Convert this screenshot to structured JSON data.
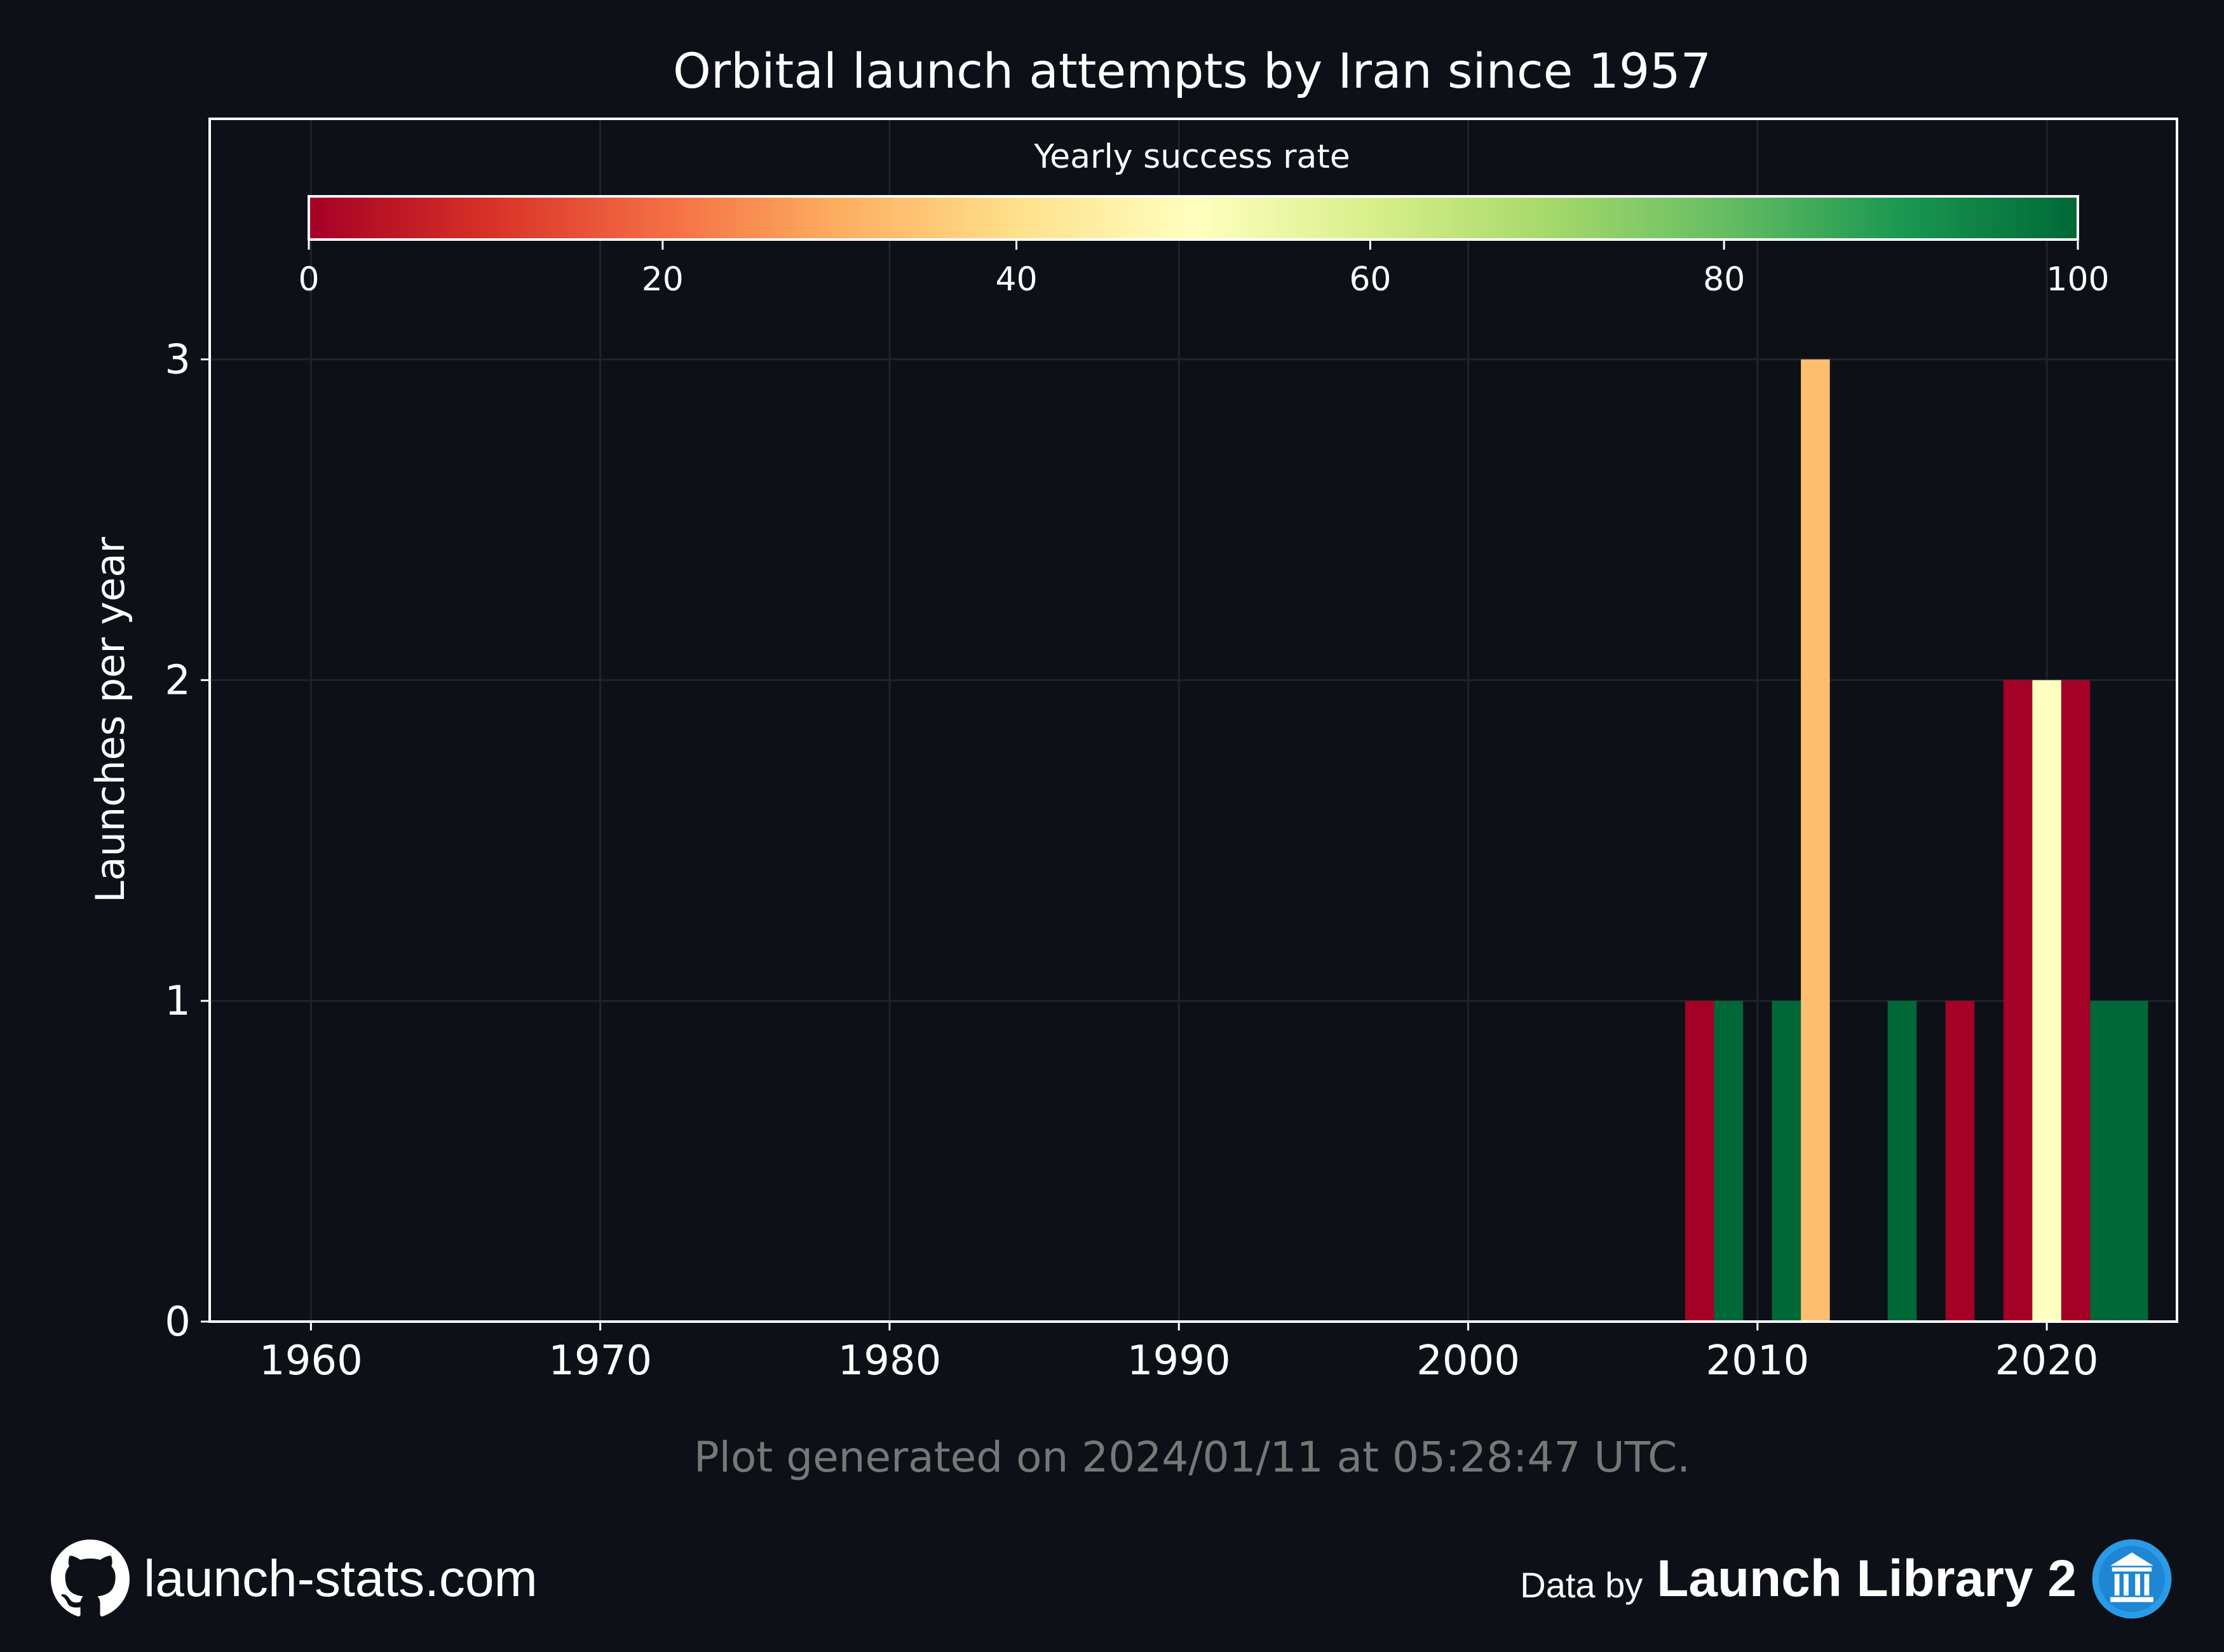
{
  "chart_data": {
    "type": "bar",
    "title": "Orbital launch attempts by Iran since 1957",
    "xlabel": "",
    "ylabel": "Launches per year",
    "xlim": [
      1956.5,
      2024.5
    ],
    "ylim": [
      0,
      3.75
    ],
    "x_ticks": [
      1960,
      1970,
      1980,
      1990,
      2000,
      2010,
      2020
    ],
    "y_ticks": [
      0,
      1,
      2,
      3
    ],
    "grid": true,
    "bars": [
      {
        "year": 2008,
        "value": 1,
        "success_rate": 0
      },
      {
        "year": 2009,
        "value": 1,
        "success_rate": 100
      },
      {
        "year": 2011,
        "value": 1,
        "success_rate": 100
      },
      {
        "year": 2012,
        "value": 3,
        "success_rate": 33.3
      },
      {
        "year": 2015,
        "value": 1,
        "success_rate": 100
      },
      {
        "year": 2017,
        "value": 1,
        "success_rate": 0
      },
      {
        "year": 2019,
        "value": 2,
        "success_rate": 0
      },
      {
        "year": 2020,
        "value": 2,
        "success_rate": 50
      },
      {
        "year": 2021,
        "value": 2,
        "success_rate": 0
      },
      {
        "year": 2022,
        "value": 1,
        "success_rate": 100
      },
      {
        "year": 2023,
        "value": 1,
        "success_rate": 100
      }
    ],
    "colorbar": {
      "label": "Yearly success rate",
      "ticks": [
        0,
        20,
        40,
        60,
        80,
        100
      ],
      "colormap": "RdYlGn",
      "placement": "top inside axes"
    }
  },
  "footer": {
    "generated_text": "Plot generated on 2024/01/11 at 05:28:47 UTC.",
    "site": "launch-stats.com",
    "data_by": "Data by",
    "source_name": "Launch Library 2"
  },
  "colors": {
    "background": "#0d1017",
    "frame": "#ffffff",
    "grid": "#1f232b",
    "footnote": "#777777"
  }
}
